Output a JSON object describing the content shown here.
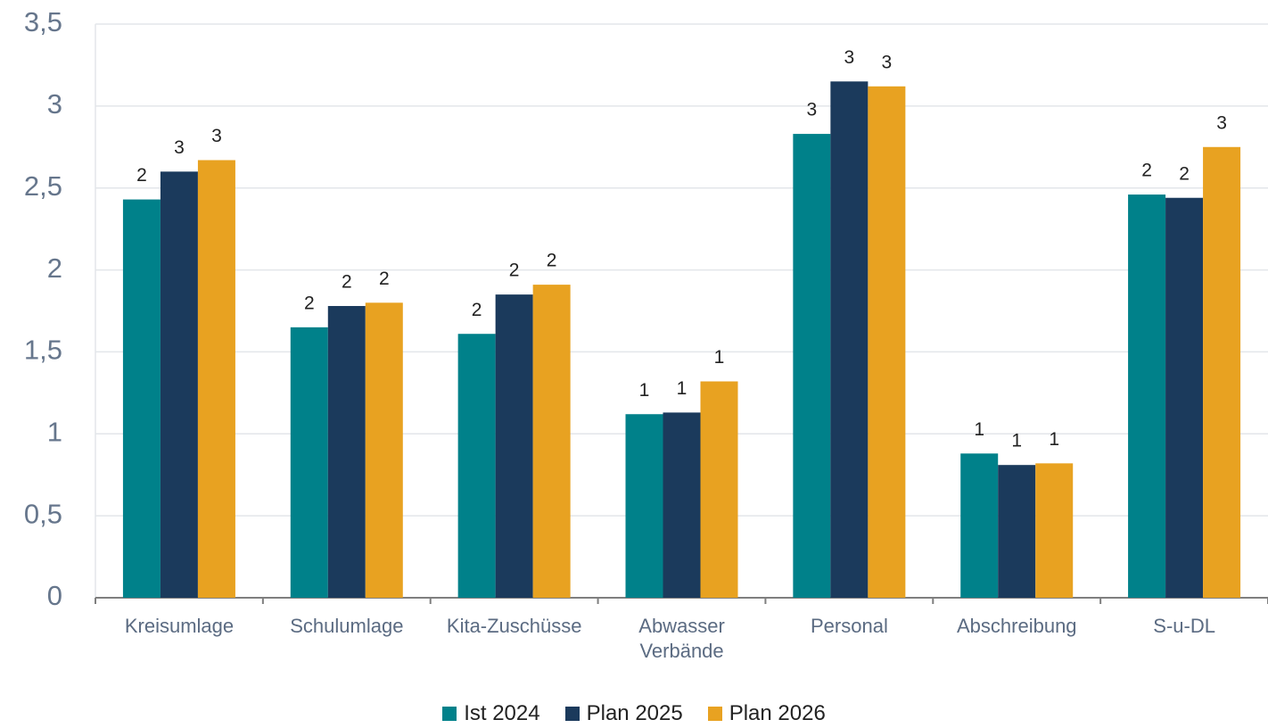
{
  "chart_data": {
    "type": "bar",
    "categories": [
      "Kreisumlage",
      "Schulumlage",
      "Kita-Zuschüsse",
      "Abwasser\nVerbände",
      "Personal",
      "Abschreibung",
      "S-u-DL"
    ],
    "series": [
      {
        "name": "Ist 2024",
        "color": "#00818a",
        "values": [
          2.43,
          1.65,
          1.61,
          1.12,
          2.83,
          0.88,
          2.46
        ],
        "value_labels": [
          "2",
          "2",
          "2",
          "1",
          "3",
          "1",
          "2"
        ]
      },
      {
        "name": "Plan 2025",
        "color": "#1b3a5c",
        "values": [
          2.6,
          1.78,
          1.85,
          1.13,
          3.15,
          0.81,
          2.44
        ],
        "value_labels": [
          "3",
          "2",
          "2",
          "1",
          "3",
          "1",
          "2"
        ]
      },
      {
        "name": "Plan 2026",
        "color": "#e8a221",
        "values": [
          2.67,
          1.8,
          1.91,
          1.32,
          3.12,
          0.82,
          2.75
        ],
        "value_labels": [
          "3",
          "2",
          "2",
          "1",
          "3",
          "1",
          "3"
        ]
      }
    ],
    "ylim": [
      0,
      3.5
    ],
    "yticks": [
      0,
      {
        "value": 0.5,
        "label": "0,5"
      },
      1,
      {
        "value": 1.5,
        "label": "1,5"
      },
      2,
      {
        "value": 2.5,
        "label": "2,5"
      },
      3,
      {
        "value": 3.5,
        "label": "3,5"
      }
    ],
    "grid": true,
    "legend": "bottom"
  }
}
